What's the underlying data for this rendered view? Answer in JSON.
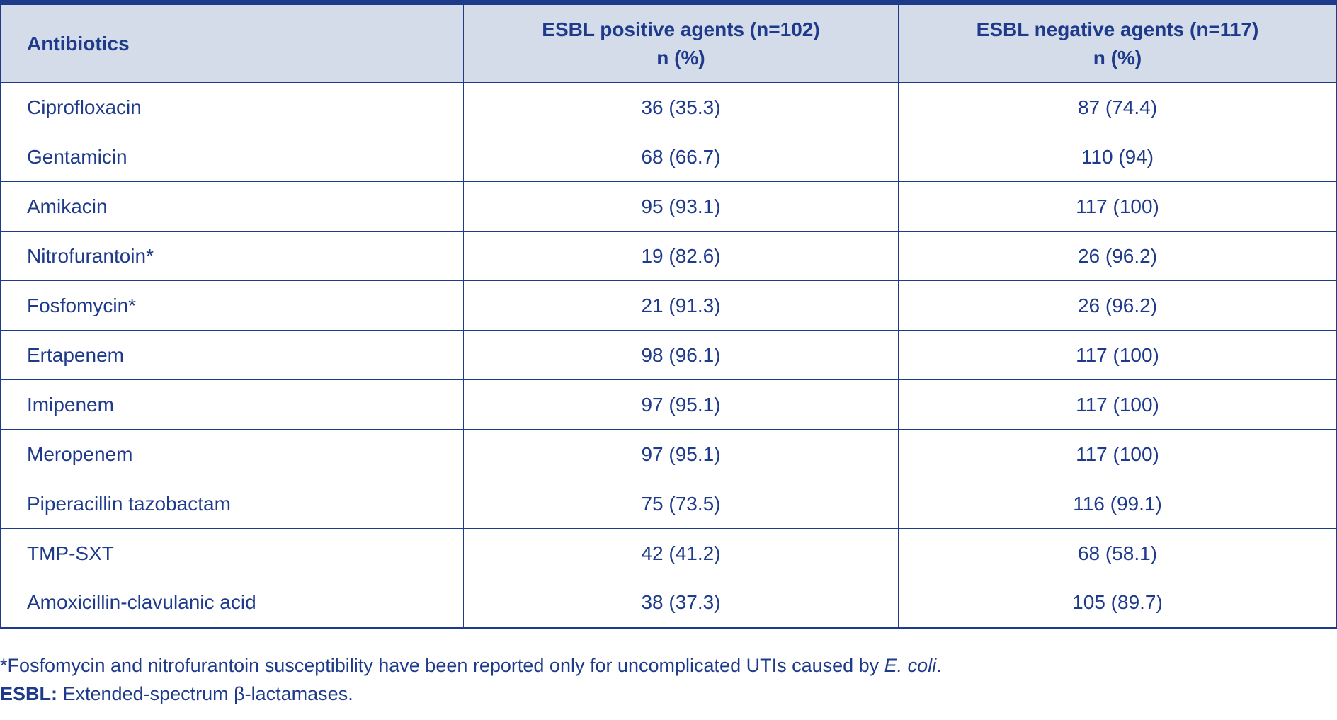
{
  "table": {
    "headers": {
      "antibiotics": "Antibiotics",
      "positive_line1": "ESBL positive agents (n=102)",
      "positive_line2": "n (%)",
      "negative_line1": "ESBL negative agents (n=117)",
      "negative_line2": "n (%)"
    },
    "rows": [
      {
        "name": "Ciprofloxacin",
        "positive": "36 (35.3)",
        "negative": "87 (74.4)"
      },
      {
        "name": "Gentamicin",
        "positive": "68 (66.7)",
        "negative": "110 (94)"
      },
      {
        "name": "Amikacin",
        "positive": "95 (93.1)",
        "negative": "117 (100)"
      },
      {
        "name": "Nitrofurantoin*",
        "positive": "19 (82.6)",
        "negative": "26 (96.2)"
      },
      {
        "name": "Fosfomycin*",
        "positive": "21 (91.3)",
        "negative": "26 (96.2)"
      },
      {
        "name": "Ertapenem",
        "positive": "98 (96.1)",
        "negative": "117 (100)"
      },
      {
        "name": "Imipenem",
        "positive": "97 (95.1)",
        "negative": "117 (100)"
      },
      {
        "name": "Meropenem",
        "positive": "97 (95.1)",
        "negative": "117 (100)"
      },
      {
        "name": "Piperacillin tazobactam",
        "positive": "75 (73.5)",
        "negative": "116 (99.1)"
      },
      {
        "name": "TMP-SXT",
        "positive": "42 (41.2)",
        "negative": "68 (58.1)"
      },
      {
        "name": "Amoxicillin-clavulanic acid",
        "positive": "38 (37.3)",
        "negative": "105 (89.7)"
      }
    ]
  },
  "footnotes": {
    "note1_text": "*Fosfomycin and nitrofurantoin susceptibility have been reported only for uncomplicated UTIs caused by ",
    "note1_italic": "E. coli",
    "note1_end": ".",
    "note2_label": "ESBL:",
    "note2_text": " Extended-spectrum β-lactamases."
  },
  "colors": {
    "text": "#1e3a8a",
    "header_background": "#d4dcea",
    "border": "#1e3a8a"
  }
}
